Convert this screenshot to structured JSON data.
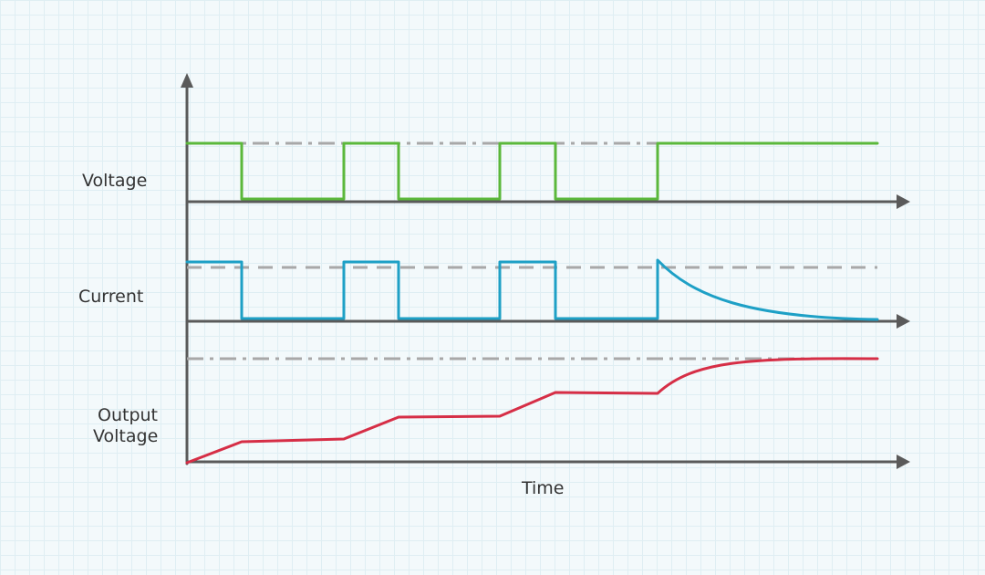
{
  "labels": {
    "voltage": "Voltage",
    "current": "Current",
    "output_line1": "Output",
    "output_line2": "Voltage",
    "time": "Time"
  },
  "colors": {
    "voltage": "#5bb83b",
    "current": "#1ea0c6",
    "output": "#d62e46",
    "axis": "#5a5a5a",
    "reference": "#a8a8a8"
  }
}
